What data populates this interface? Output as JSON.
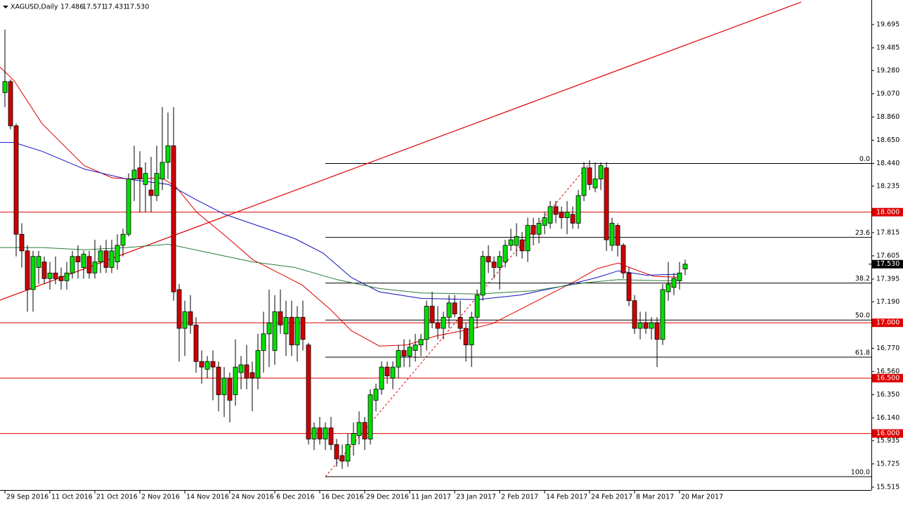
{
  "chart_data": {
    "type": "candlestick",
    "title": "XAGUSD,Daily",
    "quote_labels": [
      "17.486",
      "17.571",
      "17.431",
      "17.530"
    ],
    "up_color": "#00e000",
    "down_color": "#d00000",
    "xlim": [
      -0.875,
      154.125
    ],
    "ylim": [
      15.489,
      19.917
    ],
    "xticks": [
      {
        "value": 0,
        "label": "29 Sep 2016"
      },
      {
        "value": 8,
        "label": "11 Oct 2016"
      },
      {
        "value": 16,
        "label": "21 Oct 2016"
      },
      {
        "value": 24,
        "label": "2 Nov 2016"
      },
      {
        "value": 32,
        "label": "14 Nov 2016"
      },
      {
        "value": 40,
        "label": "24 Nov 2016"
      },
      {
        "value": 48,
        "label": "6 Dec 2016"
      },
      {
        "value": 56,
        "label": "16 Dec 2016"
      },
      {
        "value": 64,
        "label": "29 Dec 2016"
      },
      {
        "value": 72,
        "label": "11 Jan 2017"
      },
      {
        "value": 80,
        "label": "23 Jan 2017"
      },
      {
        "value": 88,
        "label": "2 Feb 2017"
      },
      {
        "value": 96,
        "label": "14 Feb 2017"
      },
      {
        "value": 104,
        "label": "24 Feb 2017"
      },
      {
        "value": 112,
        "label": "8 Mar 2017"
      },
      {
        "value": 120,
        "label": "20 Mar 2017"
      }
    ],
    "yticks": [
      19.695,
      19.485,
      {
        "value": 19.28,
        "label": "19.280"
      },
      {
        "value": 19.07,
        "label": "19.070"
      },
      {
        "value": 18.86,
        "label": "18.860"
      },
      {
        "value": 18.65,
        "label": "18.650"
      },
      {
        "value": 18.44,
        "label": "18.440"
      },
      18.235,
      17.815,
      17.605,
      17.395,
      {
        "value": 17.19,
        "label": "17.190"
      },
      {
        "value": 16.77,
        "label": "16.770"
      },
      {
        "value": 16.56,
        "label": "16.560"
      },
      {
        "value": 16.35,
        "label": "16.350"
      },
      {
        "value": 16.14,
        "label": "16.140"
      },
      15.935,
      15.725,
      15.515
    ],
    "levels": [
      {
        "value": 18,
        "label": "18.000"
      },
      {
        "value": 17,
        "label": "17.000"
      },
      {
        "value": 16.5,
        "label": "16.500"
      },
      {
        "value": 16,
        "label": "16.000"
      }
    ],
    "level_color": "#e00000",
    "price_label": {
      "value": 17.53,
      "label": "17.530"
    },
    "fib": {
      "x": [
        57,
        104
      ],
      "y": [
        15.61,
        18.44
      ],
      "levels": [
        {
          "value": 18.44,
          "label": "0.0"
        },
        {
          "value": 17.772,
          "label": "23.6"
        },
        {
          "value": 17.359,
          "label": "38.2"
        },
        {
          "value": 17.025,
          "label": "50.0"
        },
        {
          "value": 16.69,
          "label": "61.8"
        },
        {
          "value": 15.61,
          "label": "100.0"
        }
      ]
    },
    "trendline": {
      "x": [
        -0.875,
        141.625
      ],
      "y": [
        17.205,
        19.898
      ],
      "color": "#e00000"
    },
    "series": [
      {
        "color": "#e00000",
        "x": [
          -0.875,
          1.6,
          6.6,
          14.1,
          19.1,
          22.2,
          27.9,
          30.4,
          34.1,
          39.1,
          44.1,
          49.1,
          52.9,
          57.9,
          61.6,
          66.6,
          71.6,
          76.6,
          81.6,
          86.6,
          91.6,
          96.6,
          101.6,
          105.4,
          109.1,
          111.6,
          115.4,
          120.4
        ],
        "values": [
          19.31,
          19.19,
          18.8,
          18.42,
          18.31,
          18.3,
          18.31,
          18.23,
          18.0,
          17.79,
          17.57,
          17.44,
          17.34,
          17.12,
          16.93,
          16.79,
          16.8,
          16.88,
          16.93,
          16.99,
          17.12,
          17.25,
          17.38,
          17.49,
          17.54,
          17.49,
          17.42,
          17.41
        ]
      },
      {
        "color": "#1010c0",
        "x": [
          -0.875,
          1.6,
          6.6,
          14.1,
          21.6,
          29.1,
          34.1,
          39.1,
          46.6,
          51.6,
          56.6,
          61.6,
          66.6,
          74.1,
          84.1,
          91.6,
          99.1,
          105.4,
          109.1,
          114.1,
          120.4
        ],
        "values": [
          18.63,
          18.63,
          18.55,
          18.39,
          18.3,
          18.25,
          18.11,
          17.98,
          17.85,
          17.76,
          17.63,
          17.41,
          17.28,
          17.22,
          17.21,
          17.25,
          17.33,
          17.41,
          17.47,
          17.43,
          17.44
        ]
      },
      {
        "color": "#2a7a3a",
        "x": [
          -0.875,
          6.6,
          14.1,
          21.6,
          29.1,
          36.6,
          44.1,
          51.6,
          59.1,
          66.6,
          74.1,
          84.1,
          94.1,
          102.9,
          109.1,
          116.6,
          120.4
        ],
        "values": [
          17.68,
          17.68,
          17.66,
          17.68,
          17.71,
          17.63,
          17.55,
          17.5,
          17.39,
          17.31,
          17.27,
          17.26,
          17.29,
          17.36,
          17.39,
          17.38,
          17.38
        ]
      }
    ],
    "ohlc": [
      [
        19.08,
        19.65,
        18.95,
        19.18
      ],
      [
        19.18,
        19.2,
        18.75,
        18.78
      ],
      [
        18.78,
        18.8,
        17.6,
        17.8
      ],
      [
        17.8,
        17.9,
        17.5,
        17.65
      ],
      [
        17.65,
        17.7,
        17.1,
        17.3
      ],
      [
        17.3,
        17.65,
        17.1,
        17.6
      ],
      [
        17.5,
        17.65,
        17.35,
        17.6
      ],
      [
        17.55,
        17.6,
        17.35,
        17.4
      ],
      [
        17.4,
        17.55,
        17.3,
        17.45
      ],
      [
        17.45,
        17.6,
        17.35,
        17.4
      ],
      [
        17.42,
        17.5,
        17.3,
        17.38
      ],
      [
        17.38,
        17.55,
        17.3,
        17.45
      ],
      [
        17.45,
        17.65,
        17.4,
        17.6
      ],
      [
        17.6,
        17.7,
        17.4,
        17.55
      ],
      [
        17.5,
        17.65,
        17.4,
        17.62
      ],
      [
        17.6,
        17.65,
        17.4,
        17.45
      ],
      [
        17.45,
        17.75,
        17.4,
        17.55
      ],
      [
        17.55,
        17.7,
        17.45,
        17.65
      ],
      [
        17.65,
        17.75,
        17.45,
        17.5
      ],
      [
        17.5,
        17.75,
        17.45,
        17.65
      ],
      [
        17.55,
        17.8,
        17.48,
        17.7
      ],
      [
        17.7,
        17.85,
        17.6,
        17.8
      ],
      [
        17.8,
        18.35,
        17.78,
        18.3
      ],
      [
        18.3,
        18.6,
        18.1,
        18.38
      ],
      [
        18.4,
        18.55,
        18.0,
        18.3
      ],
      [
        18.25,
        18.45,
        18.0,
        18.35
      ],
      [
        18.2,
        18.5,
        18.0,
        18.15
      ],
      [
        18.15,
        18.6,
        18.1,
        18.35
      ],
      [
        18.3,
        18.95,
        18.2,
        18.45
      ],
      [
        18.45,
        18.9,
        18.3,
        18.6
      ],
      [
        18.6,
        18.95,
        17.2,
        17.28
      ],
      [
        17.3,
        17.35,
        16.65,
        16.95
      ],
      [
        16.95,
        17.2,
        16.7,
        17.1
      ],
      [
        17.1,
        17.25,
        16.9,
        16.98
      ],
      [
        16.98,
        17.05,
        16.55,
        16.65
      ],
      [
        16.65,
        16.75,
        16.45,
        16.6
      ],
      [
        16.58,
        16.7,
        16.5,
        16.65
      ],
      [
        16.65,
        16.75,
        16.3,
        16.6
      ],
      [
        16.6,
        16.65,
        16.2,
        16.35
      ],
      [
        16.35,
        16.6,
        16.15,
        16.5
      ],
      [
        16.5,
        16.55,
        16.1,
        16.3
      ],
      [
        16.35,
        16.85,
        16.25,
        16.6
      ],
      [
        16.55,
        16.7,
        16.4,
        16.62
      ],
      [
        16.62,
        16.8,
        16.4,
        16.5
      ],
      [
        16.55,
        16.65,
        16.2,
        16.5
      ],
      [
        16.5,
        16.9,
        16.4,
        16.75
      ],
      [
        16.75,
        17.1,
        16.55,
        16.9
      ],
      [
        16.9,
        17.3,
        16.6,
        17.0
      ],
      [
        16.75,
        17.25,
        16.62,
        17.1
      ],
      [
        17.1,
        17.3,
        16.9,
        16.98
      ],
      [
        16.9,
        17.2,
        16.7,
        17.05
      ],
      [
        17.05,
        17.2,
        16.7,
        16.8
      ],
      [
        16.8,
        17.15,
        16.65,
        17.05
      ],
      [
        17.05,
        17.2,
        16.75,
        16.85
      ],
      [
        16.8,
        16.82,
        15.9,
        15.95
      ],
      [
        15.95,
        16.1,
        15.85,
        16.05
      ],
      [
        16.05,
        16.15,
        15.9,
        15.95
      ],
      [
        15.95,
        16.1,
        15.85,
        16.05
      ],
      [
        16.05,
        16.15,
        15.85,
        15.9
      ],
      [
        15.9,
        15.95,
        15.7,
        15.77
      ],
      [
        15.8,
        15.9,
        15.68,
        15.75
      ],
      [
        15.75,
        16.0,
        15.7,
        15.9
      ],
      [
        15.9,
        16.1,
        15.8,
        16.0
      ],
      [
        15.98,
        16.2,
        15.9,
        16.1
      ],
      [
        16.1,
        16.15,
        15.85,
        15.95
      ],
      [
        15.95,
        16.4,
        15.9,
        16.35
      ],
      [
        16.3,
        16.45,
        16.2,
        16.4
      ],
      [
        16.4,
        16.65,
        16.35,
        16.6
      ],
      [
        16.6,
        16.65,
        16.45,
        16.52
      ],
      [
        16.5,
        16.65,
        16.4,
        16.6
      ],
      [
        16.6,
        16.8,
        16.5,
        16.75
      ],
      [
        16.75,
        16.85,
        16.6,
        16.7
      ],
      [
        16.7,
        16.85,
        16.6,
        16.78
      ],
      [
        16.75,
        16.9,
        16.65,
        16.8
      ],
      [
        16.8,
        16.9,
        16.7,
        16.85
      ],
      [
        16.85,
        17.2,
        16.75,
        17.15
      ],
      [
        17.15,
        17.28,
        16.95,
        17.0
      ],
      [
        17.0,
        17.15,
        16.85,
        16.95
      ],
      [
        16.95,
        17.1,
        16.85,
        17.05
      ],
      [
        17.05,
        17.25,
        16.95,
        17.18
      ],
      [
        17.18,
        17.25,
        17.05,
        17.08
      ],
      [
        17.05,
        17.2,
        16.85,
        16.95
      ],
      [
        16.95,
        17.0,
        16.65,
        16.8
      ],
      [
        16.8,
        17.1,
        16.6,
        17.05
      ],
      [
        17.05,
        17.3,
        16.95,
        17.25
      ],
      [
        17.25,
        17.65,
        17.2,
        17.6
      ],
      [
        17.6,
        17.7,
        17.45,
        17.55
      ],
      [
        17.55,
        17.6,
        17.4,
        17.5
      ],
      [
        17.5,
        17.65,
        17.3,
        17.6
      ],
      [
        17.55,
        17.75,
        17.5,
        17.7
      ],
      [
        17.7,
        17.85,
        17.65,
        17.75
      ],
      [
        17.7,
        17.9,
        17.6,
        17.78
      ],
      [
        17.75,
        17.82,
        17.58,
        17.65
      ],
      [
        17.65,
        17.95,
        17.55,
        17.88
      ],
      [
        17.88,
        17.95,
        17.7,
        17.8
      ],
      [
        17.8,
        17.95,
        17.72,
        17.9
      ],
      [
        17.88,
        18.0,
        17.8,
        17.95
      ],
      [
        17.9,
        18.1,
        17.85,
        18.05
      ],
      [
        18.05,
        18.1,
        17.9,
        17.98
      ],
      [
        18.0,
        18.05,
        17.85,
        17.95
      ],
      [
        17.95,
        18.1,
        17.8,
        18.0
      ],
      [
        17.98,
        18.05,
        17.85,
        17.9
      ],
      [
        17.9,
        18.2,
        17.85,
        18.15
      ],
      [
        18.15,
        18.45,
        18.1,
        18.4
      ],
      [
        18.4,
        18.47,
        18.2,
        18.25
      ],
      [
        18.22,
        18.45,
        18.18,
        18.3
      ],
      [
        18.3,
        18.45,
        18.2,
        18.42
      ],
      [
        18.4,
        18.45,
        17.65,
        17.75
      ],
      [
        17.7,
        17.95,
        17.65,
        17.9
      ],
      [
        17.88,
        17.9,
        17.6,
        17.7
      ],
      [
        17.7,
        17.72,
        17.4,
        17.45
      ],
      [
        17.45,
        17.5,
        17.15,
        17.2
      ],
      [
        17.2,
        17.25,
        16.9,
        16.95
      ],
      [
        16.95,
        17.1,
        16.85,
        17.0
      ],
      [
        17.0,
        17.1,
        16.9,
        16.95
      ],
      [
        16.95,
        17.05,
        16.85,
        17.0
      ],
      [
        17.0,
        17.05,
        16.6,
        16.85
      ],
      [
        16.85,
        17.35,
        16.8,
        17.3
      ],
      [
        17.28,
        17.55,
        17.2,
        17.35
      ],
      [
        17.32,
        17.45,
        17.25,
        17.4
      ],
      [
        17.38,
        17.55,
        17.3,
        17.45
      ],
      [
        17.486,
        17.571,
        17.431,
        17.53
      ]
    ]
  }
}
